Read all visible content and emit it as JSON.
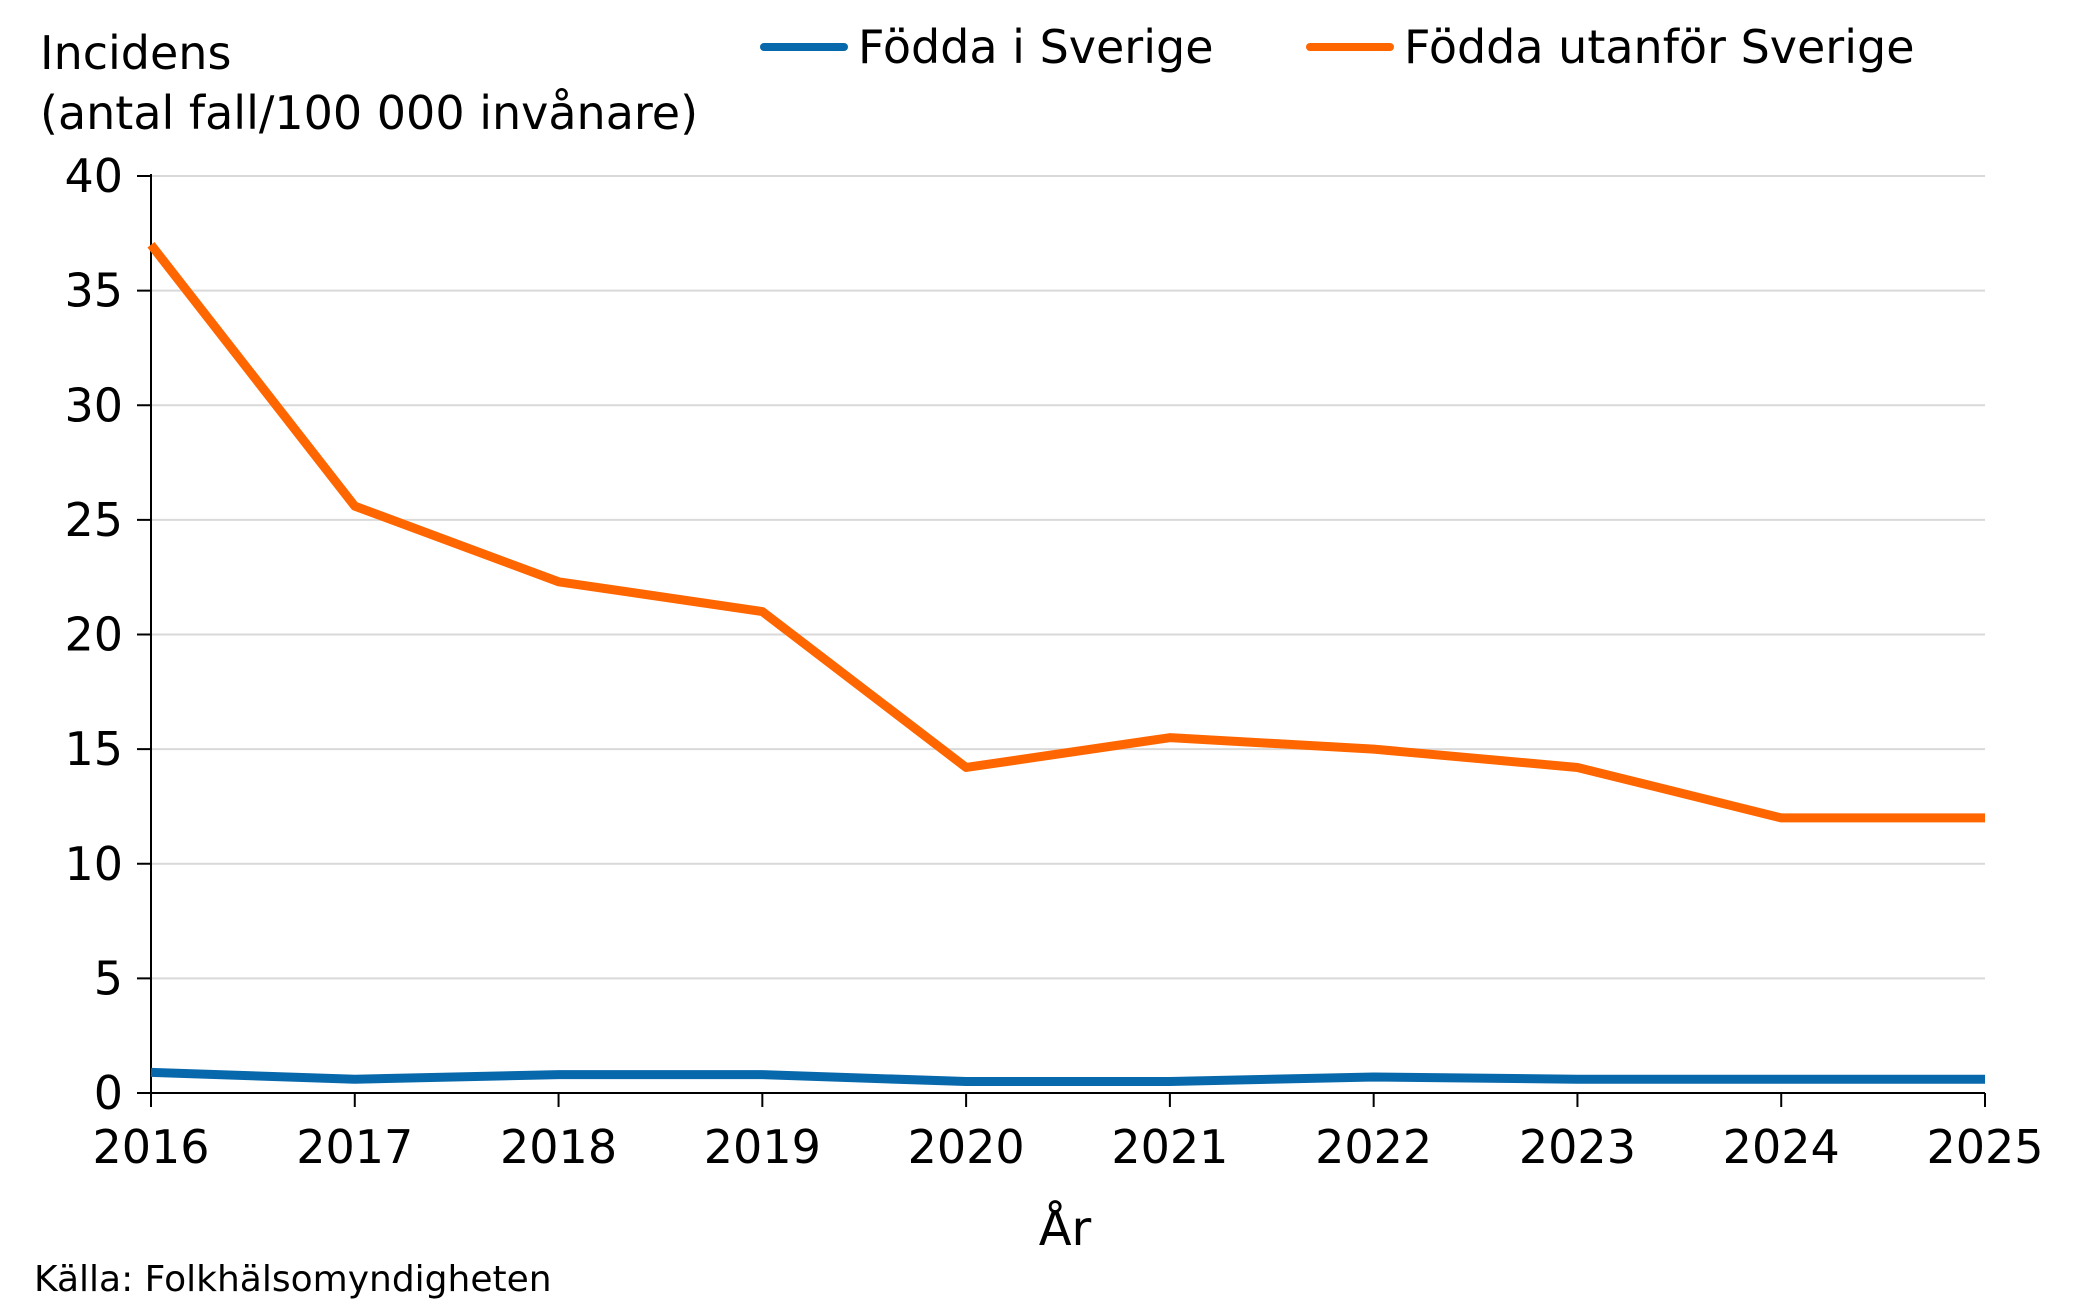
{
  "chart_data": {
    "type": "line",
    "ylabel_line1": "Incidens",
    "ylabel_line2": "(antal fall/100 000 invånare)",
    "xlabel": "År",
    "source": "Källa: Folkhälsomyndigheten",
    "ylim": [
      0,
      40
    ],
    "yticks": [
      0,
      5,
      10,
      15,
      20,
      25,
      30,
      35,
      40
    ],
    "grid": true,
    "legend_position": "top",
    "categories": [
      "2016",
      "2017",
      "2018",
      "2019",
      "2020",
      "2021",
      "2022",
      "2023",
      "2024",
      "2025"
    ],
    "series": [
      {
        "name": "Födda i Sverige",
        "color": "#0868ac",
        "values": [
          0.9,
          0.6,
          0.8,
          0.8,
          0.5,
          0.5,
          0.7,
          0.6,
          0.6,
          0.6
        ]
      },
      {
        "name": "Födda utanför Sverige",
        "color": "#ff6600",
        "values": [
          37.0,
          25.6,
          22.3,
          21.0,
          14.2,
          15.5,
          15.0,
          14.2,
          12.0,
          12.0
        ]
      }
    ]
  }
}
